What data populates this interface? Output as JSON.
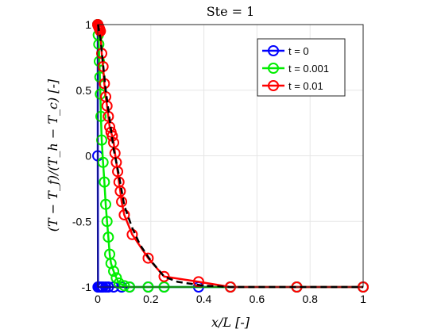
{
  "chart_data": {
    "type": "line",
    "title": "Ste = 1",
    "xlabel": "x/L [-]",
    "ylabel": "(T − T_f)/(T_h − T_c) [-]",
    "xlim": [
      0,
      1
    ],
    "ylim": [
      -1,
      1
    ],
    "xticks": [
      "0",
      "0.2",
      "0.4",
      "0.6",
      "0.8",
      "1"
    ],
    "yticks": [
      "-1",
      "-0.5",
      "0",
      "0.5",
      "1"
    ],
    "grid": true,
    "legend_position": "top-right",
    "series": [
      {
        "name": "t = 0",
        "color": "#0000ff",
        "x": [
          0,
          0.0001,
          0.001,
          0.002,
          0.004,
          0.006,
          0.008,
          0.01,
          0.012,
          0.015,
          0.02,
          0.03,
          0.04,
          0.06,
          0.09,
          0.12,
          0.19,
          0.25,
          0.38,
          0.5,
          0.75,
          1
        ],
        "y": [
          1,
          0,
          -1,
          -1,
          -1,
          -1,
          -1,
          -1,
          -1,
          -1,
          -1,
          -1,
          -1,
          -1,
          -1,
          -1,
          -1,
          -1,
          -1,
          -1,
          -1,
          -1
        ]
      },
      {
        "name": "t = 0.001",
        "color": "#00ee00",
        "x": [
          0.0,
          0.002,
          0.004,
          0.006,
          0.008,
          0.01,
          0.012,
          0.015,
          0.02,
          0.025,
          0.03,
          0.035,
          0.04,
          0.045,
          0.05,
          0.06,
          0.07,
          0.08,
          0.1,
          0.12,
          0.19,
          0.25,
          0.5,
          0.75,
          1
        ],
        "y": [
          1.0,
          0.92,
          0.85,
          0.72,
          0.6,
          0.47,
          0.3,
          0.12,
          -0.05,
          -0.2,
          -0.37,
          -0.5,
          -0.62,
          -0.75,
          -0.82,
          -0.88,
          -0.93,
          -0.97,
          -0.99,
          -1,
          -1,
          -1,
          -1,
          -1,
          -1
        ]
      },
      {
        "name": "t = 0.01",
        "color": "#ff0000",
        "x": [
          0.0,
          0.001,
          0.002,
          0.003,
          0.004,
          0.005,
          0.006,
          0.008,
          0.01,
          0.015,
          0.02,
          0.025,
          0.03,
          0.035,
          0.04,
          0.045,
          0.05,
          0.055,
          0.06,
          0.065,
          0.07,
          0.075,
          0.08,
          0.085,
          0.09,
          0.1,
          0.13,
          0.19,
          0.25,
          0.38,
          0.5,
          0.75,
          1
        ],
        "y": [
          1.0,
          0.995,
          0.99,
          0.985,
          0.98,
          0.975,
          0.97,
          0.96,
          0.95,
          0.78,
          0.68,
          0.55,
          0.45,
          0.38,
          0.3,
          0.22,
          0.18,
          0.15,
          0.1,
          0.02,
          -0.05,
          -0.12,
          -0.2,
          -0.27,
          -0.35,
          -0.45,
          -0.6,
          -0.78,
          -0.92,
          -0.96,
          -1,
          -1,
          -1
        ]
      }
    ],
    "reference_curve": {
      "style": "dashed",
      "color": "#000000",
      "x": [
        0.001,
        0.005,
        0.01,
        0.02,
        0.03,
        0.04,
        0.05,
        0.06,
        0.08,
        0.1,
        0.13,
        0.16,
        0.2,
        0.25,
        0.3,
        0.4,
        0.5,
        0.75,
        1
      ],
      "y": [
        1.0,
        0.95,
        0.9,
        0.7,
        0.5,
        0.35,
        0.2,
        0.05,
        -0.15,
        -0.38,
        -0.55,
        -0.68,
        -0.8,
        -0.92,
        -0.96,
        -0.99,
        -1,
        -1,
        -1
      ]
    }
  }
}
